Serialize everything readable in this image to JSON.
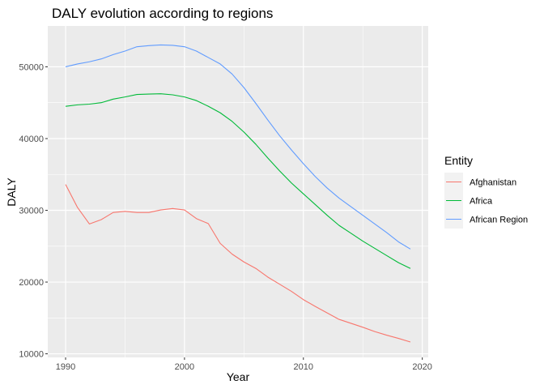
{
  "chart_data": {
    "type": "line",
    "title": "DALY evolution according to regions",
    "xlabel": "Year",
    "ylabel": "DALY",
    "xlim": [
      1988.5,
      2020.5
    ],
    "ylim": [
      9500,
      55700
    ],
    "x_ticks": [
      1990,
      2000,
      2010,
      2020
    ],
    "y_ticks": [
      10000,
      20000,
      30000,
      40000,
      50000
    ],
    "grid": true,
    "legend": {
      "title": "Entity",
      "position": "right"
    },
    "x": [
      1990,
      1991,
      1992,
      1993,
      1994,
      1995,
      1996,
      1997,
      1998,
      1999,
      2000,
      2001,
      2002,
      2003,
      2004,
      2005,
      2006,
      2007,
      2008,
      2009,
      2010,
      2011,
      2012,
      2013,
      2014,
      2015,
      2016,
      2017,
      2018,
      2019
    ],
    "series": [
      {
        "name": "Afghanistan",
        "color": "#F8766D",
        "values": [
          33600,
          30400,
          28100,
          28700,
          29700,
          29850,
          29700,
          29700,
          30050,
          30250,
          30050,
          28850,
          28150,
          25400,
          23900,
          22800,
          21900,
          20700,
          19700,
          18700,
          17550,
          16600,
          15700,
          14800,
          14250,
          13700,
          13100,
          12600,
          12150,
          11650
        ]
      },
      {
        "name": "Africa",
        "color": "#00BA38",
        "values": [
          44500,
          44700,
          44800,
          45000,
          45500,
          45800,
          46150,
          46200,
          46250,
          46100,
          45800,
          45300,
          44500,
          43600,
          42400,
          40900,
          39200,
          37300,
          35500,
          33800,
          32300,
          30800,
          29300,
          27900,
          26800,
          25700,
          24700,
          23700,
          22700,
          21900
        ]
      },
      {
        "name": "African Region",
        "color": "#619CFF",
        "values": [
          50000,
          50400,
          50700,
          51100,
          51700,
          52200,
          52800,
          52950,
          53050,
          53000,
          52800,
          52200,
          51300,
          50400,
          49000,
          47100,
          44900,
          42600,
          40400,
          38400,
          36500,
          34700,
          33100,
          31700,
          30500,
          29300,
          28100,
          26900,
          25600,
          24600
        ]
      }
    ]
  }
}
